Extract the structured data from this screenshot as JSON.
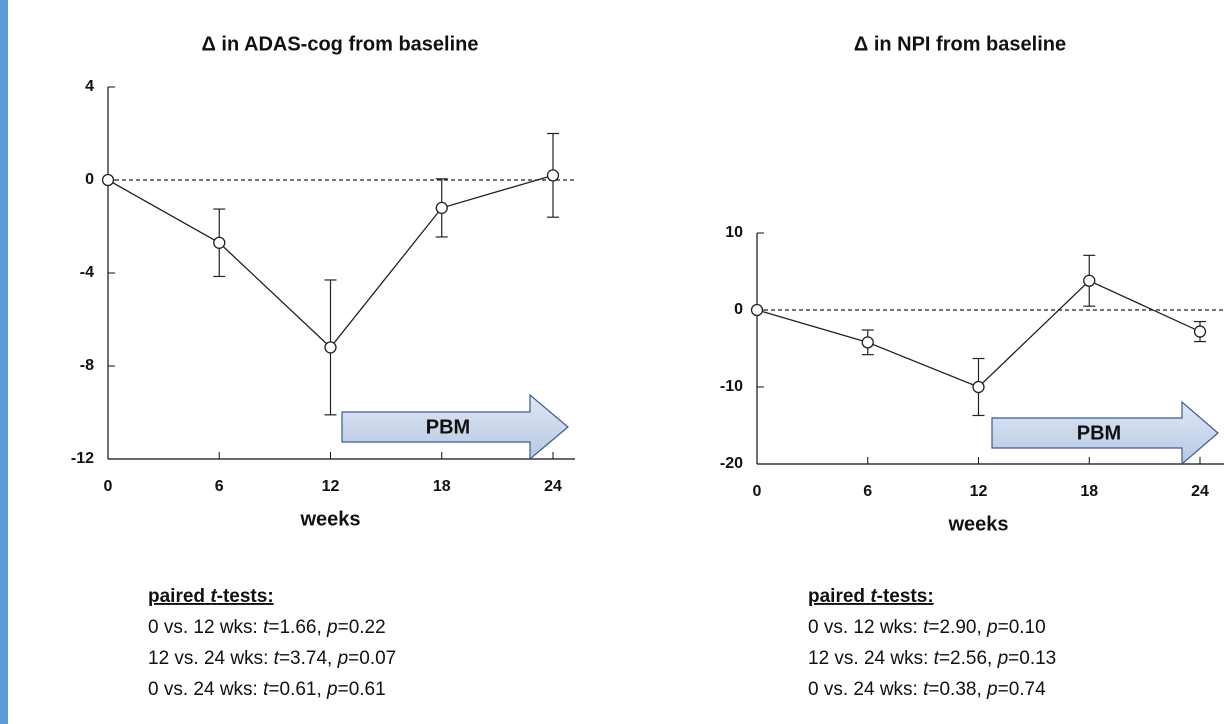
{
  "chart_data": [
    {
      "type": "line",
      "title": "Δ in ADAS-cog  from baseline",
      "xlabel": "weeks",
      "x": [
        0,
        6,
        12,
        18,
        24
      ],
      "series": [
        {
          "color": "#222222",
          "values": [
            0,
            -2.7,
            -7.2,
            -1.2,
            0.2
          ],
          "errors": [
            0,
            1.45,
            2.9,
            1.25,
            1.8
          ]
        }
      ],
      "xlim": [
        0,
        24
      ],
      "xticks": [
        0,
        6,
        12,
        18,
        24
      ],
      "ylim": [
        -12,
        4
      ],
      "yticks": [
        -12,
        -8,
        -4,
        0,
        4
      ],
      "reference_line": 0,
      "annotation": "PBM",
      "tests": {
        "heading": [
          "paired ",
          "t",
          "-tests:"
        ],
        "lines": [
          [
            "0 vs. 12 wks: ",
            "t",
            "=1.66, ",
            "p",
            "=0.22"
          ],
          [
            "12 vs. 24 wks: ",
            "t",
            "=3.74, ",
            "p",
            "=0.07"
          ],
          [
            "0 vs. 24 wks: ",
            "t",
            "=0.61, ",
            "p",
            "=0.61"
          ]
        ]
      }
    },
    {
      "type": "line",
      "title": "Δ in NPI from baseline",
      "xlabel": "weeks",
      "x": [
        0,
        6,
        12,
        18,
        24
      ],
      "series": [
        {
          "color": "#222222",
          "values": [
            0,
            -4.2,
            -10,
            3.8,
            -2.8
          ],
          "errors": [
            0,
            1.6,
            3.7,
            3.3,
            1.3
          ]
        }
      ],
      "xlim": [
        0,
        24
      ],
      "xticks": [
        0,
        6,
        12,
        18,
        24
      ],
      "ylim": [
        -20,
        10
      ],
      "yticks": [
        -20,
        -10,
        0,
        10
      ],
      "reference_line": 0,
      "annotation": "PBM",
      "tests": {
        "heading": [
          "paired ",
          "t",
          "-tests:"
        ],
        "lines": [
          [
            "0 vs. 12 wks: ",
            "t",
            "=2.90, ",
            "p",
            "=0.10"
          ],
          [
            "12 vs. 24 wks: ",
            "t",
            "=2.56, ",
            "p",
            "=0.13"
          ],
          [
            "0 vs. 24 wks: ",
            "t",
            "=0.38, ",
            "p",
            "=0.74"
          ]
        ]
      }
    }
  ]
}
